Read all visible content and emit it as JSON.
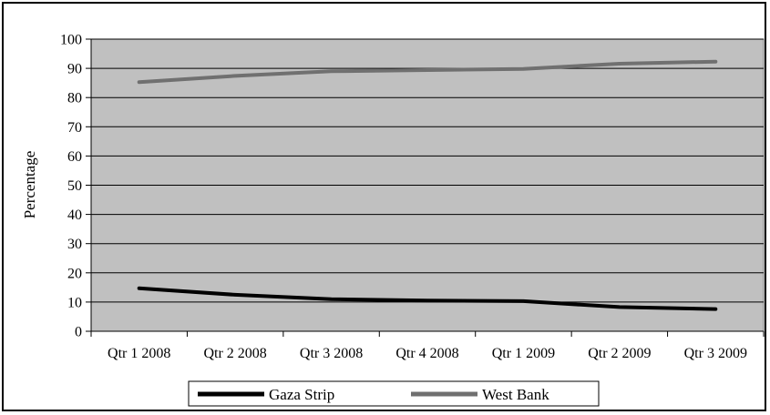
{
  "chart_data": {
    "type": "line",
    "title": "",
    "xlabel": "",
    "ylabel": "Percentage",
    "categories": [
      "Qtr 1 2008",
      "Qtr 2 2008",
      "Qtr 3 2008",
      "Qtr 4 2008",
      "Qtr 1 2009",
      "Qtr 2 2009",
      "Qtr 3 2009"
    ],
    "ylim": [
      0,
      100
    ],
    "yticks": [
      0,
      10,
      20,
      30,
      40,
      50,
      60,
      70,
      80,
      90,
      100
    ],
    "grid": true,
    "legend_position": "bottom",
    "series": [
      {
        "name": "Gaza Strip",
        "color": "#000000",
        "values": [
          14.7,
          12.5,
          11.0,
          10.5,
          10.3,
          8.3,
          7.6
        ]
      },
      {
        "name": "West Bank",
        "color": "#707070",
        "values": [
          85.3,
          87.4,
          89.0,
          89.4,
          89.8,
          91.6,
          92.3
        ]
      }
    ],
    "plot_background": "#c0c0c0"
  }
}
